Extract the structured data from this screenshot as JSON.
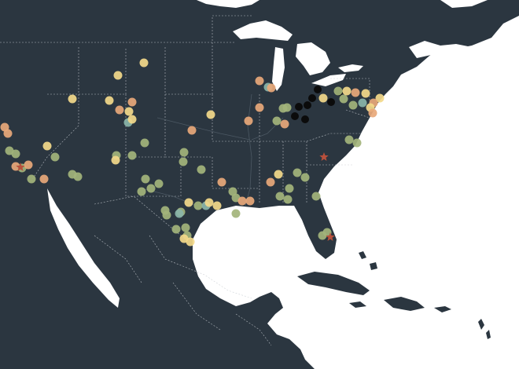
{
  "map": {
    "style": "dark basemap, North America, white ocean",
    "colors": {
      "land": "#2b3640",
      "water": "#ffffff",
      "border": "#c8cdd2",
      "river": "#5a6773"
    },
    "marker_categories": [
      {
        "key": "yellow",
        "color": "#f3d98a"
      },
      {
        "key": "peach",
        "color": "#e8a87a"
      },
      {
        "key": "olive",
        "color": "#a3b47b"
      },
      {
        "key": "teal",
        "color": "#8ab5a9"
      },
      {
        "key": "black",
        "color": "#0b0b0b"
      },
      {
        "key": "star",
        "color": "#b8503c"
      }
    ]
  }
}
